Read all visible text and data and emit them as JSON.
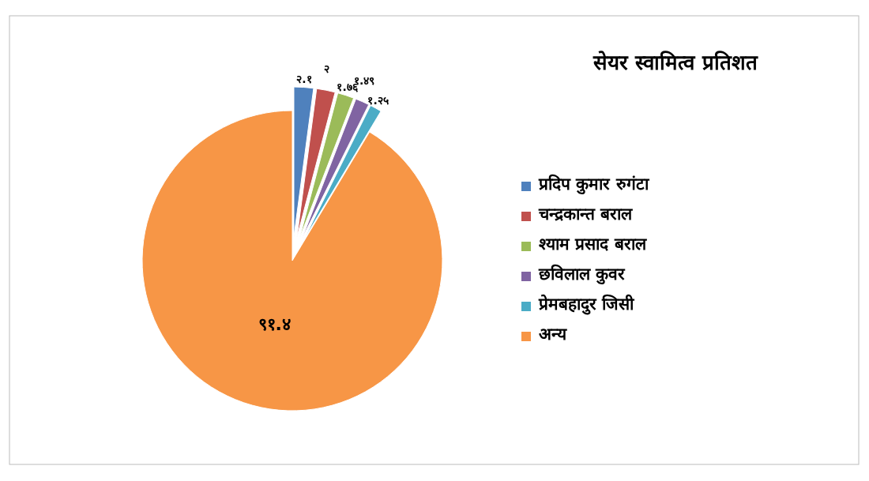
{
  "chart_data": {
    "type": "pie",
    "title": "सेयर स्वामित्व प्रतिशत",
    "categories": [
      "प्रदिप कुमार रुगंटा",
      "चन्द्रकान्त बराल",
      "श्याम प्रसाद बराल",
      "छविलाल कुवर",
      "प्रेमबहादुर जिसी",
      "अन्य"
    ],
    "values": [
      2.1,
      2,
      1.76,
      1.49,
      1.25,
      91.4
    ],
    "value_labels": [
      "२.१",
      "२",
      "१.७६",
      "१.४९",
      "१.२५",
      "९१.४"
    ],
    "colors": [
      "#4f81bd",
      "#c0504d",
      "#9bbb59",
      "#8064a2",
      "#4bacc6",
      "#f79646"
    ],
    "legend": "right"
  }
}
